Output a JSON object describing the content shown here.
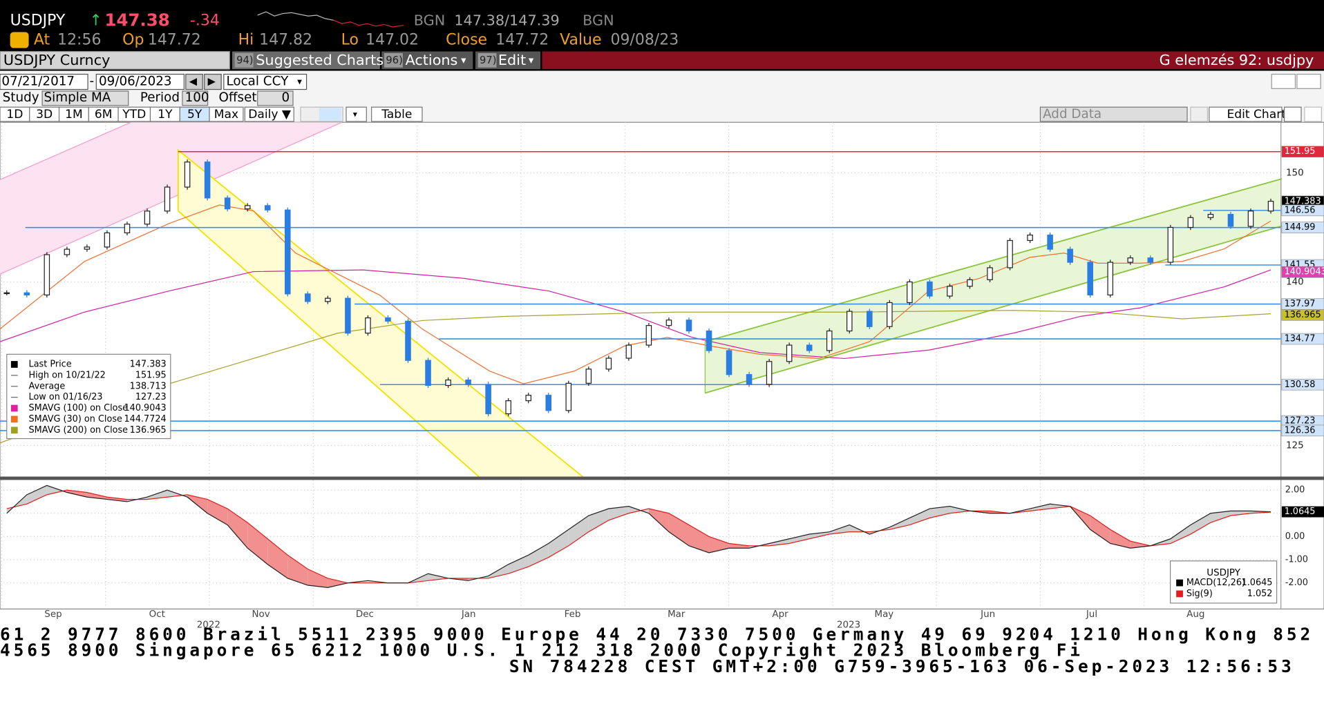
{
  "header": {
    "ticker": "USDJPY",
    "arrow": "↑",
    "last": "147.38",
    "change": "-.34",
    "source": "BGN",
    "bid_ask": "147.38/147.39",
    "source2": "BGN",
    "stats": [
      {
        "label": "At",
        "value": "12:56"
      },
      {
        "label": "Op",
        "value": "147.72"
      },
      {
        "label": "Hi",
        "value": "147.82"
      },
      {
        "label": "Lo",
        "value": "147.02"
      },
      {
        "label": "Close",
        "value": "147.72"
      },
      {
        "label": "Value",
        "value": "09/08/23"
      }
    ]
  },
  "menu": {
    "security": "USDJPY Curncy",
    "items": [
      {
        "num": "94)",
        "label": "Suggested Charts"
      },
      {
        "num": "96)",
        "label": "Actions"
      },
      {
        "num": "97)",
        "label": "Edit"
      }
    ],
    "title": "G elemzés 92: usdjpy"
  },
  "controls": {
    "start": "07/21/2017",
    "end": "09/06/2023",
    "currency": "Local CCY",
    "study_label": "Study",
    "study": "Simple MA",
    "period_label": "Period",
    "period": "100",
    "offset_label": "Offset",
    "offset": "0",
    "ranges": [
      "1D",
      "3D",
      "1M",
      "6M",
      "YTD",
      "1Y",
      "5Y",
      "Max"
    ],
    "frequency": "Daily ▼",
    "table": "Table",
    "add_data": "Add Data",
    "edit_chart": "Edit Chart"
  },
  "price_panel": {
    "closes": [
      139.0,
      138.8,
      142.5,
      143.0,
      143.2,
      144.5,
      145.3,
      146.5,
      148.7,
      151.0,
      147.7,
      146.7,
      147.0,
      146.6,
      138.9,
      138.2,
      138.5,
      135.3,
      136.7,
      136.4,
      132.8,
      130.5,
      131.0,
      130.6,
      127.9,
      129.1,
      129.6,
      128.2,
      130.7,
      132.0,
      133.0,
      134.2,
      136.0,
      136.5,
      135.5,
      133.7,
      131.5,
      130.6,
      132.7,
      134.2,
      133.7,
      135.5,
      137.3,
      135.9,
      138.1,
      140.0,
      138.7,
      139.6,
      140.2,
      141.3,
      143.8,
      144.3,
      143.0,
      141.8,
      138.8,
      141.8,
      142.2,
      141.8,
      145.0,
      145.9,
      146.2,
      145.1,
      146.5,
      147.4
    ],
    "ylim": [
      122.14,
      154.41
    ],
    "yticks": [
      125,
      140,
      150
    ],
    "levels": [
      151.95,
      147.383,
      146.56,
      144.99,
      141.55,
      140.9043,
      137.97,
      136.965,
      134.77,
      130.58,
      127.23,
      126.36
    ],
    "months": [
      "Sep",
      "Oct",
      "Nov",
      "Dec",
      "Jan",
      "Feb",
      "Mar",
      "Apr",
      "May",
      "Jun",
      "Jul",
      "Aug"
    ],
    "years": [
      "2022",
      "2023"
    ],
    "legend": [
      {
        "label": "Last Price",
        "value": "147.383"
      },
      {
        "label": "High on 10/21/22",
        "value": "151.95"
      },
      {
        "label": "Average",
        "value": "138.713"
      },
      {
        "label": "Low on 01/16/23",
        "value": "127.23"
      },
      {
        "label": "SMAVG (100)  on Close",
        "value": "140.9043"
      },
      {
        "label": "SMAVG (30)  on Close",
        "value": "144.7724"
      },
      {
        "label": "SMAVG (200)  on Close",
        "value": "136.965"
      }
    ]
  },
  "macd_panel": {
    "macd": [
      1.0,
      1.8,
      2.2,
      1.9,
      1.7,
      1.6,
      1.5,
      1.7,
      2.0,
      1.7,
      1.0,
      0.5,
      -0.5,
      -1.2,
      -1.8,
      -2.1,
      -2.2,
      -2.0,
      -1.9,
      -2.0,
      -2.0,
      -1.6,
      -1.8,
      -1.9,
      -1.7,
      -1.2,
      -0.8,
      -0.3,
      0.3,
      0.9,
      1.2,
      1.3,
      1.0,
      0.2,
      -0.4,
      -0.7,
      -0.5,
      -0.5,
      -0.3,
      -0.1,
      0.1,
      0.2,
      0.5,
      0.1,
      0.4,
      0.8,
      1.2,
      1.3,
      1.1,
      1.0,
      1.0,
      1.2,
      1.4,
      1.3,
      0.3,
      -0.3,
      -0.5,
      -0.4,
      -0.1,
      0.5,
      1.0,
      1.1,
      1.1,
      1.06
    ],
    "signal": [
      1.2,
      1.4,
      1.8,
      2.0,
      1.9,
      1.7,
      1.6,
      1.6,
      1.7,
      1.8,
      1.6,
      1.2,
      0.6,
      -0.1,
      -0.8,
      -1.4,
      -1.8,
      -2.0,
      -2.0,
      -2.0,
      -2.0,
      -1.9,
      -1.8,
      -1.8,
      -1.8,
      -1.6,
      -1.3,
      -0.9,
      -0.4,
      0.2,
      0.7,
      1.0,
      1.2,
      1.0,
      0.5,
      0.0,
      -0.3,
      -0.4,
      -0.4,
      -0.3,
      -0.1,
      0.1,
      0.2,
      0.2,
      0.3,
      0.5,
      0.8,
      1.0,
      1.1,
      1.1,
      1.0,
      1.1,
      1.2,
      1.3,
      0.9,
      0.3,
      -0.2,
      -0.4,
      -0.3,
      0.1,
      0.6,
      0.9,
      1.0,
      1.052
    ],
    "ylim": [
      -3.05,
      2.4
    ],
    "yticks": [
      {
        "value": 2,
        "label": "2.00"
      },
      {
        "value": 1,
        "label": "1.00"
      },
      {
        "value": 0,
        "label": "0.00"
      },
      {
        "value": -1,
        "label": "-1.00"
      },
      {
        "value": -2,
        "label": "-2.00"
      }
    ],
    "last": 1.0645,
    "legend": {
      "title": "USDJPY",
      "rows": [
        {
          "label": "MACD(12,26)",
          "value": "1.0645"
        },
        {
          "label": "Sig(9)",
          "value": "1.052"
        }
      ]
    }
  },
  "footer": {
    "lines": [
      "61 2 9777 8600 Brazil 5511 2395 9000 Europe 44 20 7330 7500 Germany 49 69 9204 1210 Hong Kong 852",
      " 4565 8900     Singapore 65 6212 1000       U.S. 1 212 318 2000        Copyright 2023 Bloomberg Fi",
      "SN 784228 CEST GMT+2:00 G759-3965-163 06-Sep-2023 12:56:53"
    ]
  }
}
